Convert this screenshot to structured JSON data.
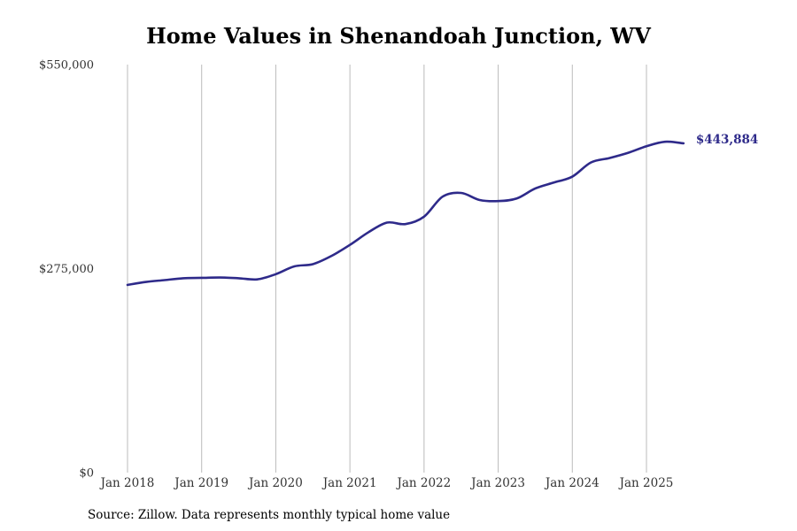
{
  "chart_data": {
    "type": "line",
    "title": "Home Values in Shenandoah Junction, WV",
    "source": "Source: Zillow. Data represents monthly typical home value",
    "xlabel": "",
    "ylabel": "",
    "ylim": [
      0,
      550000
    ],
    "y_ticks": [
      {
        "value": 0,
        "label": "$0"
      },
      {
        "value": 275000,
        "label": "$275,000"
      },
      {
        "value": 550000,
        "label": "$550,000"
      }
    ],
    "x_ticks": [
      {
        "value": "2018-01",
        "label": "Jan 2018"
      },
      {
        "value": "2019-01",
        "label": "Jan 2019"
      },
      {
        "value": "2020-01",
        "label": "Jan 2020"
      },
      {
        "value": "2021-01",
        "label": "Jan 2021"
      },
      {
        "value": "2022-01",
        "label": "Jan 2022"
      },
      {
        "value": "2023-01",
        "label": "Jan 2023"
      },
      {
        "value": "2024-01",
        "label": "Jan 2024"
      },
      {
        "value": "2025-01",
        "label": "Jan 2025"
      }
    ],
    "grid": {
      "vertical": true,
      "horizontal": false
    },
    "line_color": "#2e2a8a",
    "grid_color": "#bbbbbb",
    "end_label": "$443,884",
    "series": [
      {
        "points": [
          [
            "2018-01",
            253000
          ],
          [
            "2018-04",
            257000
          ],
          [
            "2018-07",
            259500
          ],
          [
            "2018-10",
            262000
          ],
          [
            "2019-01",
            262500
          ],
          [
            "2019-04",
            263000
          ],
          [
            "2019-07",
            262000
          ],
          [
            "2019-10",
            260500
          ],
          [
            "2020-01",
            267500
          ],
          [
            "2020-04",
            278000
          ],
          [
            "2020-07",
            281000
          ],
          [
            "2020-10",
            292000
          ],
          [
            "2021-01",
            307000
          ],
          [
            "2021-04",
            324000
          ],
          [
            "2021-07",
            337000
          ],
          [
            "2021-10",
            335000
          ],
          [
            "2022-01",
            345000
          ],
          [
            "2022-04",
            372000
          ],
          [
            "2022-07",
            377000
          ],
          [
            "2022-10",
            367500
          ],
          [
            "2023-01",
            366000
          ],
          [
            "2023-04",
            369500
          ],
          [
            "2023-07",
            383000
          ],
          [
            "2023-10",
            391000
          ],
          [
            "2024-01",
            399000
          ],
          [
            "2024-04",
            418000
          ],
          [
            "2024-07",
            424000
          ],
          [
            "2024-10",
            431000
          ],
          [
            "2025-01",
            440000
          ],
          [
            "2025-04",
            446000
          ],
          [
            "2025-07",
            443884
          ]
        ]
      }
    ]
  }
}
